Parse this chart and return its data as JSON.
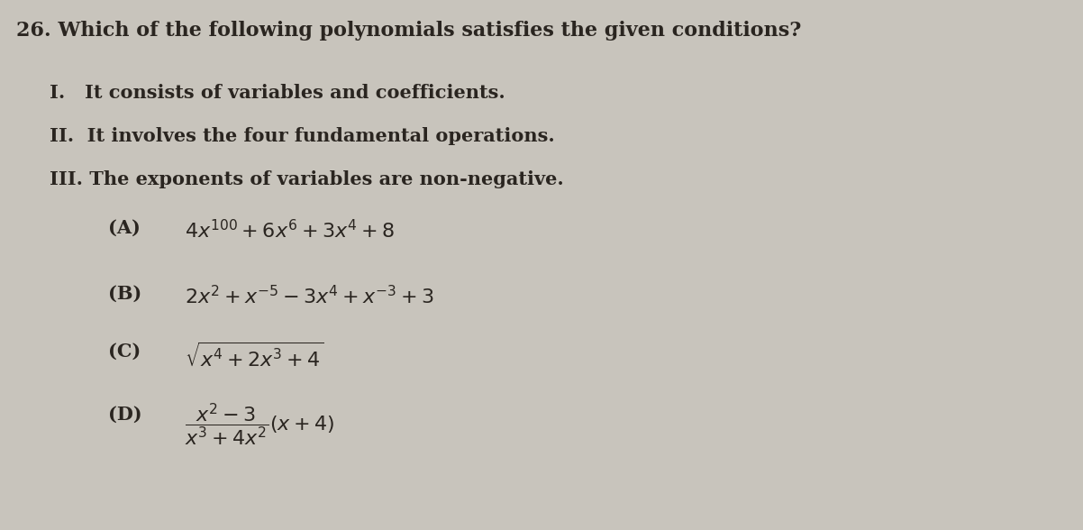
{
  "background_color": "#c8c4bc",
  "text_color": "#2a2520",
  "title": "26. Which of the following polynomials satisfies the given conditions?",
  "cond1": "I.   It consists of variables and coefficients.",
  "cond2": "II.  It involves the four fundamental operations.",
  "cond3": "III. The exponents of variables are non-negative.",
  "figsize": [
    12.02,
    5.88
  ],
  "dpi": 100,
  "title_fontsize": 16,
  "cond_fontsize": 15,
  "math_fontsize": 16,
  "label_fontsize": 15
}
